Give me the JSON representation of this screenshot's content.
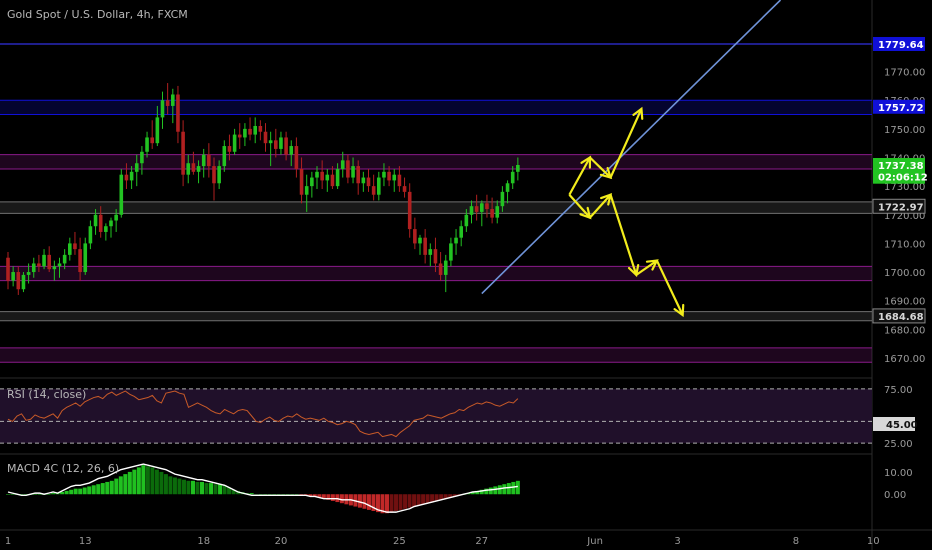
{
  "header": {
    "symbol_title": "Gold Spot / U.S. Dollar, 4h, FXCM"
  },
  "colors": {
    "background": "#000000",
    "bull": "#22c322",
    "bear": "#b02020",
    "trendline": "#6f93d8",
    "arrows": "#f2ec1c",
    "blue_zone": "#1010d8",
    "purple_zone": "#8a1a8a",
    "gray_line": "#707070",
    "rsi_line": "#c85a28",
    "rsi_band": "#20102a",
    "macd_line": "#ffffff",
    "macd_signal": "#a05050",
    "macd_hist_pos": "#20c020",
    "macd_hist_pos_dark": "#0b6b0b",
    "macd_hist_neg": "#c02828",
    "macd_hist_neg_dark": "#701010"
  },
  "price_tags": [
    {
      "value": 1779.64,
      "label": "1779.64",
      "bg": "#1010d8",
      "fg": "#ffffff"
    },
    {
      "value": 1757.72,
      "label": "1757.72",
      "bg": "#1010d8",
      "fg": "#ffffff"
    },
    {
      "value": 1737.38,
      "label": "1737.38",
      "bg": "#22c322",
      "fg": "#ffffff"
    },
    {
      "value": 1733.3,
      "label": "02:06:12",
      "bg": "#22c322",
      "fg": "#ffffff"
    },
    {
      "value": 1722.97,
      "label": "1722.97",
      "bg": "#111111",
      "fg": "#d8d8d8",
      "border": "#888888"
    },
    {
      "value": 1684.68,
      "label": "1684.68",
      "bg": "#111111",
      "fg": "#d8d8d8",
      "border": "#888888"
    }
  ],
  "zones": [
    {
      "kind": "line",
      "value": 1779.64,
      "color": "#3030e0"
    },
    {
      "kind": "band",
      "from": 1760.0,
      "to": 1755.0,
      "color": "#1010d8"
    },
    {
      "kind": "band",
      "from": 1741.0,
      "to": 1736.0,
      "color": "#8a1a8a"
    },
    {
      "kind": "band",
      "from": 1724.5,
      "to": 1720.5,
      "color": "#707070"
    },
    {
      "kind": "band",
      "from": 1702.0,
      "to": 1697.0,
      "color": "#8a1a8a"
    },
    {
      "kind": "band",
      "from": 1686.2,
      "to": 1683.0,
      "color": "#707070"
    },
    {
      "kind": "band",
      "from": 1673.5,
      "to": 1668.5,
      "color": "#8a1a8a"
    }
  ],
  "rsi": {
    "label": "RSI (14, close)",
    "levels": [
      75,
      45,
      25
    ],
    "tick_labels": [
      "75.00",
      "45.00",
      "25.00"
    ],
    "current_label": "45.00",
    "values": [
      47,
      45,
      50,
      52,
      46,
      47,
      51,
      49,
      48,
      50,
      52,
      48,
      55,
      58,
      60,
      62,
      59,
      63,
      65,
      67,
      68,
      66,
      70,
      72,
      69,
      71,
      73,
      70,
      68,
      65,
      66,
      67,
      69,
      64,
      62,
      71,
      72,
      73,
      71,
      70,
      58,
      60,
      62,
      60,
      58,
      55,
      53,
      52,
      56,
      54,
      52,
      55,
      56,
      55,
      50,
      45,
      44,
      47,
      49,
      46,
      45,
      48,
      50,
      49,
      52,
      49,
      47,
      48,
      47,
      46,
      48,
      45,
      44,
      42,
      43,
      45,
      44,
      42,
      36,
      34,
      33,
      34,
      35,
      31,
      32,
      33,
      31,
      35,
      38,
      41,
      46,
      47,
      48,
      51,
      50,
      49,
      48,
      50,
      52,
      53,
      56,
      55,
      58,
      60,
      62,
      61,
      63,
      62,
      60,
      59,
      61,
      63,
      62,
      66
    ]
  },
  "macd": {
    "label": "MACD 4C (12, 26, 6)",
    "tick_labels": [
      "10.00",
      "0.00"
    ],
    "macd_line": [
      1,
      0.5,
      0,
      -0.5,
      -0.5,
      0,
      0.5,
      0.5,
      0,
      0.5,
      1,
      0.5,
      1.5,
      2.5,
      3.5,
      4,
      4,
      4.5,
      5,
      6,
      7,
      7.5,
      8,
      9,
      10,
      11,
      11.5,
      12,
      12.5,
      13,
      13.5,
      13,
      12.5,
      12,
      11.5,
      11,
      10,
      9,
      8.5,
      8,
      7.5,
      7,
      6.5,
      6.5,
      6,
      5.5,
      5,
      4.5,
      4,
      3,
      2,
      1,
      0.5,
      0,
      -0.5,
      -0.5,
      -0.5,
      -0.5,
      -0.5,
      -0.5,
      -0.5,
      -0.5,
      -0.5,
      -0.5,
      -0.5,
      -0.5,
      -0.5,
      -1,
      -1,
      -1.5,
      -2,
      -2,
      -2,
      -2,
      -2.5,
      -2.5,
      -2.5,
      -3,
      -3.5,
      -4,
      -5,
      -6,
      -7,
      -7.5,
      -8,
      -8,
      -8,
      -7.5,
      -7,
      -6.5,
      -5.5,
      -5,
      -4.5,
      -4,
      -3.5,
      -3,
      -2.5,
      -2,
      -1.5,
      -1,
      -0.5,
      0,
      0.5,
      1,
      1.2,
      1.5,
      1.8,
      2,
      2.2,
      2.5,
      2.8,
      3,
      3.2,
      3.5
    ],
    "histogram": [
      0,
      0,
      0,
      0,
      0,
      0,
      0,
      0,
      0,
      0,
      0.5,
      0.5,
      1,
      1.5,
      2,
      2.5,
      2.5,
      3,
      3.5,
      4,
      4.5,
      5,
      5.5,
      6,
      7,
      8,
      9,
      10,
      11,
      12,
      13,
      12.5,
      12,
      11,
      10,
      9,
      8,
      7.5,
      7,
      6.5,
      6,
      6,
      5.5,
      5.5,
      5,
      5,
      4.5,
      4.5,
      4,
      3,
      2,
      1.5,
      1,
      0.5,
      0.5,
      0,
      0,
      0,
      0,
      0,
      0,
      0,
      0,
      0,
      0,
      -0.5,
      -0.5,
      -1,
      -1,
      -1.5,
      -2,
      -2.5,
      -3,
      -3.5,
      -4,
      -4.5,
      -5,
      -5.5,
      -6,
      -6.5,
      -7,
      -7.5,
      -8,
      -8.5,
      -8.5,
      -8,
      -7.5,
      -7,
      -6.5,
      -6,
      -5.5,
      -5,
      -4.5,
      -4,
      -3.5,
      -3,
      -2.5,
      -2,
      -1.5,
      -1,
      -0.5,
      0,
      0.5,
      1,
      1.5,
      2,
      2.5,
      3,
      3.5,
      4,
      4.5,
      5,
      5.5,
      6
    ]
  },
  "chart_data": {
    "type": "candlestick",
    "title": "Gold Spot / U.S. Dollar, 4h, FXCM",
    "ylim": [
      1663,
      1795
    ],
    "y_ticks": [
      1670,
      1680,
      1690,
      1700,
      1710,
      1720,
      1730,
      1740,
      1750,
      1760,
      1770
    ],
    "y_tick_labels": [
      "1670.00",
      "1680.00",
      "1690.00",
      "1700.00",
      "1710.00",
      "1720.00",
      "1730.00",
      "1740.00",
      "1750.00",
      "1760.00",
      "1770.00"
    ],
    "x_ticks": [
      {
        "label": "1",
        "bar": 0
      },
      {
        "label": "13",
        "bar": 15
      },
      {
        "label": "18",
        "bar": 38
      },
      {
        "label": "20",
        "bar": 53
      },
      {
        "label": "25",
        "bar": 76
      },
      {
        "label": "27",
        "bar": 92
      },
      {
        "label": "Jun",
        "bar": 114
      },
      {
        "label": "3",
        "bar": 130
      },
      {
        "label": "8",
        "bar": 153
      },
      {
        "label": "10",
        "bar": 168
      }
    ],
    "candles": [
      [
        1705,
        1707,
        1694,
        1697
      ],
      [
        1697,
        1702,
        1695,
        1700
      ],
      [
        1700,
        1702,
        1692,
        1694
      ],
      [
        1694,
        1700,
        1693,
        1699
      ],
      [
        1699,
        1703,
        1696,
        1700
      ],
      [
        1700,
        1705,
        1698,
        1703
      ],
      [
        1703,
        1706,
        1700,
        1702
      ],
      [
        1702,
        1708,
        1701,
        1706
      ],
      [
        1706,
        1709,
        1700,
        1701
      ],
      [
        1701,
        1704,
        1697,
        1702
      ],
      [
        1702,
        1705,
        1698,
        1703
      ],
      [
        1703,
        1708,
        1701,
        1706
      ],
      [
        1706,
        1712,
        1704,
        1710
      ],
      [
        1710,
        1714,
        1706,
        1708
      ],
      [
        1708,
        1712,
        1697,
        1700
      ],
      [
        1700,
        1712,
        1699,
        1710
      ],
      [
        1710,
        1718,
        1708,
        1716
      ],
      [
        1716,
        1722,
        1713,
        1720
      ],
      [
        1720,
        1723,
        1712,
        1714
      ],
      [
        1714,
        1717,
        1711,
        1716
      ],
      [
        1716,
        1719,
        1712,
        1718
      ],
      [
        1718,
        1722,
        1714,
        1720
      ],
      [
        1720,
        1736,
        1719,
        1734
      ],
      [
        1734,
        1738,
        1729,
        1732
      ],
      [
        1732,
        1737,
        1729,
        1735
      ],
      [
        1735,
        1741,
        1730,
        1738
      ],
      [
        1738,
        1744,
        1734,
        1742
      ],
      [
        1742,
        1749,
        1740,
        1747
      ],
      [
        1747,
        1753,
        1743,
        1745
      ],
      [
        1745,
        1758,
        1744,
        1754
      ],
      [
        1754,
        1763,
        1750,
        1760
      ],
      [
        1760,
        1766,
        1755,
        1758
      ],
      [
        1758,
        1764,
        1752,
        1762
      ],
      [
        1762,
        1765,
        1745,
        1749
      ],
      [
        1749,
        1753,
        1730,
        1734
      ],
      [
        1734,
        1741,
        1731,
        1738
      ],
      [
        1738,
        1742,
        1734,
        1735
      ],
      [
        1735,
        1739,
        1731,
        1737
      ],
      [
        1737,
        1743,
        1733,
        1741
      ],
      [
        1741,
        1745,
        1733,
        1737
      ],
      [
        1737,
        1740,
        1725,
        1731
      ],
      [
        1731,
        1739,
        1729,
        1737
      ],
      [
        1737,
        1746,
        1735,
        1744
      ],
      [
        1744,
        1748,
        1739,
        1742
      ],
      [
        1742,
        1750,
        1741,
        1748
      ],
      [
        1748,
        1752,
        1743,
        1747
      ],
      [
        1747,
        1752,
        1744,
        1750
      ],
      [
        1750,
        1754,
        1746,
        1748
      ],
      [
        1748,
        1754,
        1745,
        1751
      ],
      [
        1751,
        1753,
        1746,
        1749
      ],
      [
        1749,
        1752,
        1742,
        1745
      ],
      [
        1745,
        1749,
        1737,
        1746
      ],
      [
        1746,
        1750,
        1740,
        1743
      ],
      [
        1743,
        1749,
        1741,
        1747
      ],
      [
        1747,
        1749,
        1739,
        1741
      ],
      [
        1741,
        1746,
        1737,
        1744
      ],
      [
        1744,
        1747,
        1733,
        1736
      ],
      [
        1736,
        1740,
        1724,
        1727
      ],
      [
        1727,
        1734,
        1721,
        1730
      ],
      [
        1730,
        1735,
        1726,
        1733
      ],
      [
        1733,
        1737,
        1729,
        1735
      ],
      [
        1735,
        1739,
        1729,
        1732
      ],
      [
        1732,
        1736,
        1728,
        1734
      ],
      [
        1734,
        1737,
        1729,
        1730
      ],
      [
        1730,
        1738,
        1729,
        1736
      ],
      [
        1736,
        1742,
        1733,
        1739
      ],
      [
        1739,
        1741,
        1731,
        1733
      ],
      [
        1733,
        1740,
        1731,
        1737
      ],
      [
        1737,
        1739,
        1727,
        1731
      ],
      [
        1731,
        1735,
        1728,
        1733
      ],
      [
        1733,
        1736,
        1728,
        1730
      ],
      [
        1730,
        1734,
        1725,
        1727
      ],
      [
        1727,
        1735,
        1725,
        1733
      ],
      [
        1733,
        1738,
        1730,
        1735
      ],
      [
        1735,
        1737,
        1730,
        1732
      ],
      [
        1732,
        1736,
        1728,
        1734
      ],
      [
        1734,
        1737,
        1728,
        1730
      ],
      [
        1730,
        1733,
        1726,
        1728
      ],
      [
        1728,
        1731,
        1712,
        1715
      ],
      [
        1715,
        1719,
        1708,
        1710
      ],
      [
        1710,
        1713,
        1706,
        1712
      ],
      [
        1712,
        1715,
        1703,
        1706
      ],
      [
        1706,
        1710,
        1702,
        1708
      ],
      [
        1708,
        1712,
        1700,
        1703
      ],
      [
        1703,
        1707,
        1697,
        1699
      ],
      [
        1699,
        1706,
        1693,
        1704
      ],
      [
        1704,
        1712,
        1702,
        1710
      ],
      [
        1710,
        1715,
        1706,
        1712
      ],
      [
        1712,
        1718,
        1709,
        1716
      ],
      [
        1716,
        1722,
        1714,
        1720
      ],
      [
        1720,
        1725,
        1717,
        1723
      ],
      [
        1723,
        1727,
        1718,
        1721
      ],
      [
        1721,
        1725,
        1716,
        1724
      ],
      [
        1724,
        1727,
        1719,
        1722
      ],
      [
        1722,
        1726,
        1717,
        1719
      ],
      [
        1719,
        1725,
        1717,
        1723
      ],
      [
        1723,
        1730,
        1721,
        1728
      ],
      [
        1728,
        1732,
        1724,
        1731
      ],
      [
        1731,
        1737,
        1729,
        1735
      ],
      [
        1735,
        1740,
        1732,
        1737.38
      ]
    ],
    "trendline": [
      {
        "bar": 92,
        "price": 1692.5
      },
      {
        "bar": 150,
        "price": 1795
      }
    ],
    "projection_path_up": [
      {
        "bar": 109,
        "price": 1727
      },
      {
        "bar": 113,
        "price": 1740
      },
      {
        "bar": 117,
        "price": 1733
      },
      {
        "bar": 123,
        "price": 1757
      }
    ],
    "projection_path_down": [
      {
        "bar": 109,
        "price": 1727
      },
      {
        "bar": 113,
        "price": 1719
      },
      {
        "bar": 117,
        "price": 1727
      },
      {
        "bar": 122,
        "price": 1699
      },
      {
        "bar": 126,
        "price": 1704
      },
      {
        "bar": 131,
        "price": 1685
      }
    ]
  }
}
